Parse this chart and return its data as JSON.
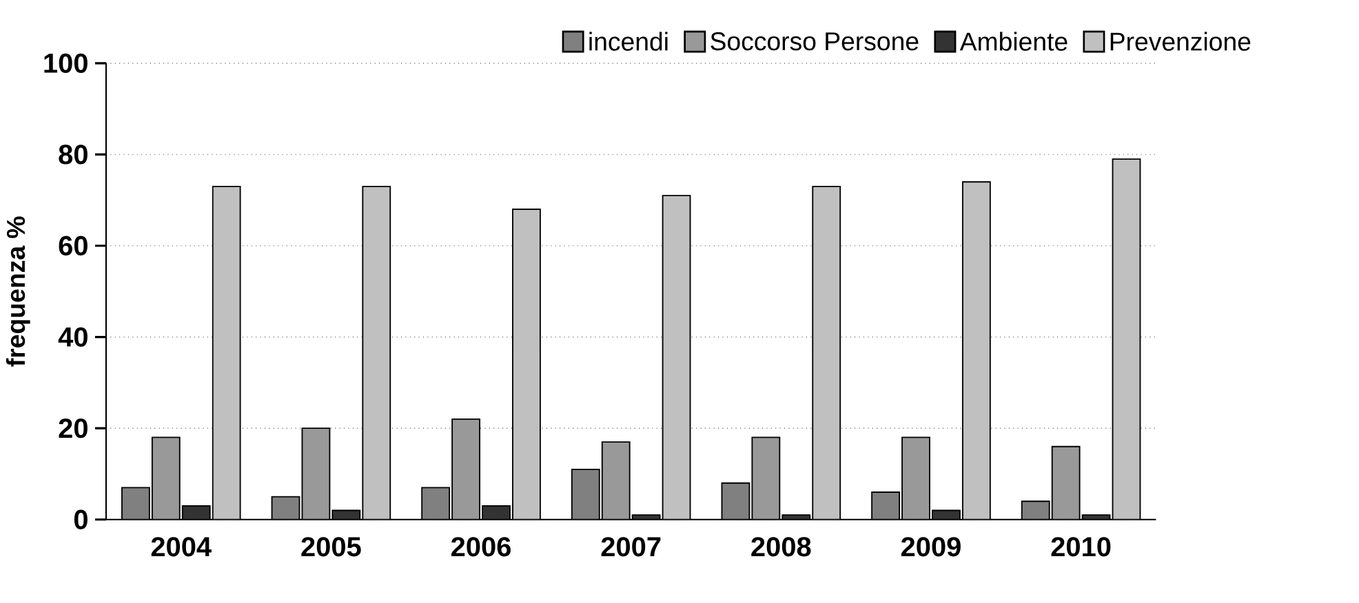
{
  "chart_data": {
    "type": "bar",
    "ylabel": "frequenza %",
    "categories": [
      "2004",
      "2005",
      "2006",
      "2007",
      "2008",
      "2009",
      "2010"
    ],
    "series": [
      {
        "name": "incendi",
        "color": "#808080",
        "values": [
          7,
          5,
          7,
          11,
          8,
          6,
          4
        ]
      },
      {
        "name": "Soccorso  Persone",
        "color": "#999999",
        "values": [
          18,
          20,
          22,
          17,
          18,
          18,
          16
        ]
      },
      {
        "name": "Ambiente",
        "color": "#333333",
        "values": [
          3,
          2,
          3,
          1,
          1,
          2,
          1
        ]
      },
      {
        "name": "Prevenzione",
        "color": "#c0c0c0",
        "values": [
          73,
          73,
          68,
          71,
          73,
          74,
          79
        ]
      }
    ],
    "ylim": [
      0,
      100
    ],
    "yticks": [
      0,
      20,
      40,
      60,
      80,
      100
    ],
    "grid": "y",
    "legend": "top"
  }
}
